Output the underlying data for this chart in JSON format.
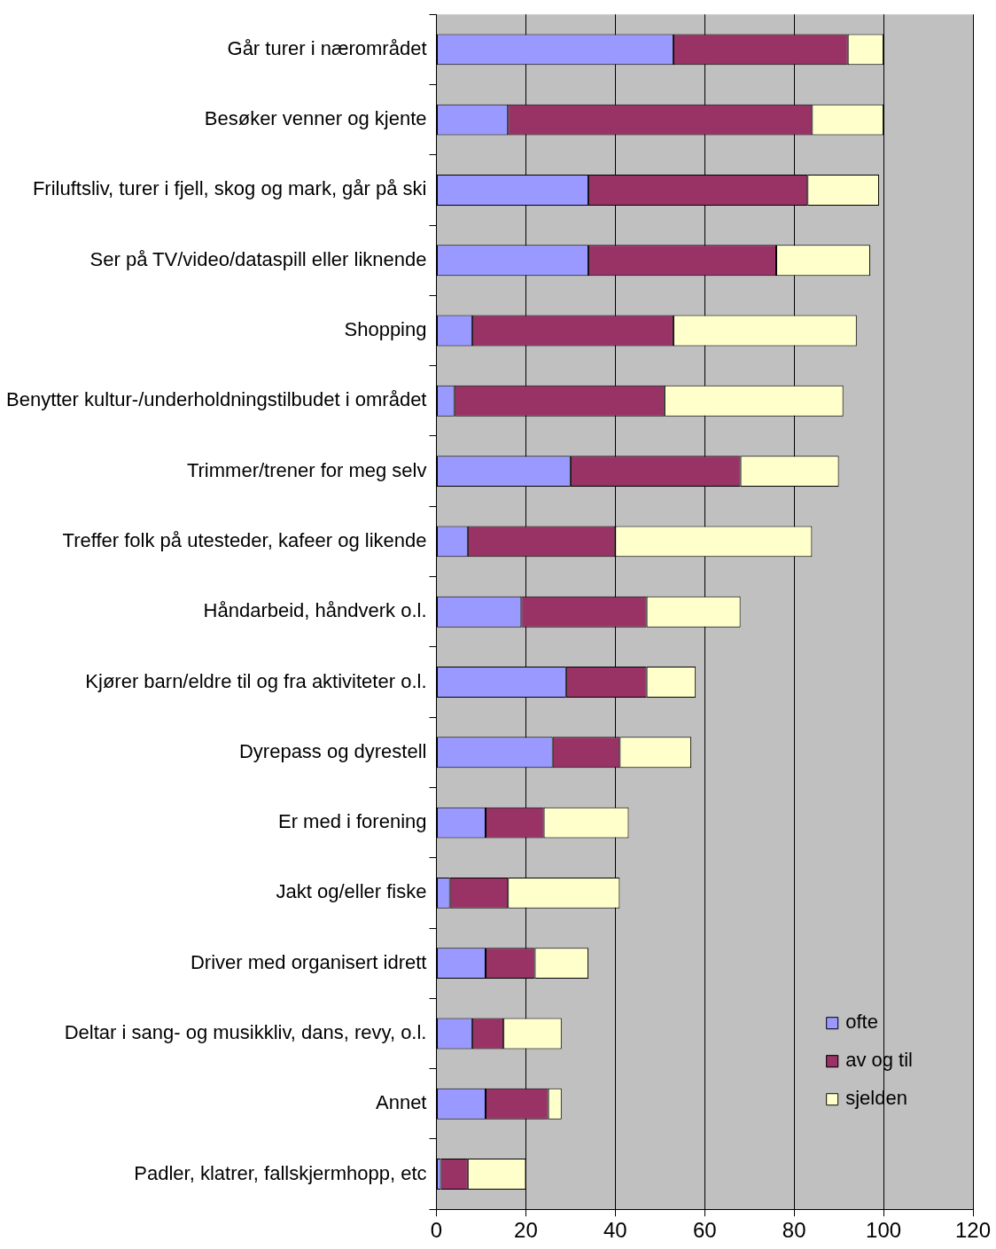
{
  "chart_data": {
    "type": "bar",
    "orientation": "horizontal",
    "stacked": true,
    "categories": [
      "Går turer i nærområdet",
      "Besøker venner og kjente",
      "Friluftsliv, turer i fjell, skog og mark, går på ski",
      "Ser på TV/video/dataspill eller liknende",
      "Shopping",
      "Benytter kultur-/underholdningstilbudet i området",
      "Trimmer/trener for meg selv",
      "Treffer folk på utesteder, kafeer og likende",
      "Håndarbeid, håndverk o.l.",
      "Kjører barn/eldre til og fra aktiviteter o.l.",
      "Dyrepass og dyrestell",
      "Er med i forening",
      "Jakt og/eller fiske",
      "Driver med organisert idrett",
      "Deltar i sang- og musikkliv, dans, revy, o.l.",
      "Annet",
      "Padler, klatrer, fallskjermhopp, etc"
    ],
    "series": [
      {
        "name": "ofte",
        "color": "#9999ff",
        "values": [
          53,
          16,
          34,
          34,
          8,
          4,
          30,
          7,
          19,
          29,
          26,
          11,
          3,
          11,
          8,
          11,
          1
        ]
      },
      {
        "name": "av og til",
        "color": "#993366",
        "values": [
          39,
          68,
          49,
          42,
          45,
          47,
          38,
          33,
          28,
          18,
          15,
          13,
          13,
          11,
          7,
          14,
          6
        ]
      },
      {
        "name": "sjelden",
        "color": "#ffffcc",
        "values": [
          8,
          16,
          16,
          21,
          41,
          40,
          22,
          44,
          21,
          11,
          16,
          19,
          25,
          12,
          13,
          3,
          13
        ]
      }
    ],
    "xlim": [
      0,
      120
    ],
    "xticks": [
      0,
      20,
      40,
      60,
      80,
      100,
      120
    ],
    "grid": "x",
    "legend": "bottom right"
  }
}
